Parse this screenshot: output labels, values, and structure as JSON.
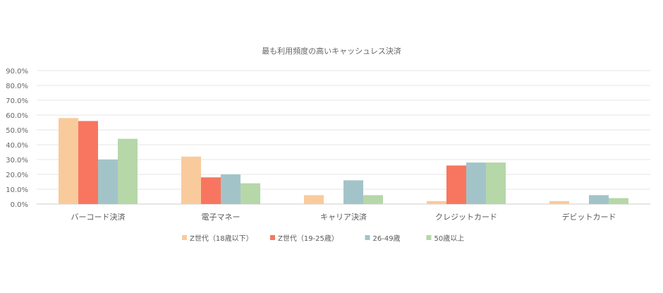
{
  "chart_data": {
    "type": "bar",
    "title": "最も利用頻度の高いキャッシュレス決済",
    "categories": [
      "バーコード決済",
      "電子マネー",
      "キャリア決済",
      "クレジットカード",
      "デビットカード"
    ],
    "yticks": [
      "0.0%",
      "10.0%",
      "20.0%",
      "30.0%",
      "40.0%",
      "50.0%",
      "60.0%",
      "70.0%",
      "80.0%",
      "90.0%"
    ],
    "ylim": [
      0,
      90
    ],
    "grid": true,
    "legend_position": "bottom",
    "series": [
      {
        "name": "Z世代（18歳以下）",
        "color": "#F9CB9C",
        "values": [
          58,
          32,
          6,
          2,
          2
        ]
      },
      {
        "name": "Z世代（19-25歳）",
        "color": "#F8765F",
        "values": [
          56,
          18,
          0,
          26,
          0
        ]
      },
      {
        "name": "26-49歳",
        "color": "#A2C4C9",
        "values": [
          30,
          20,
          16,
          28,
          6
        ]
      },
      {
        "name": "50歳以上",
        "color": "#B6D7A8",
        "values": [
          44,
          14,
          6,
          28,
          4
        ]
      }
    ]
  }
}
